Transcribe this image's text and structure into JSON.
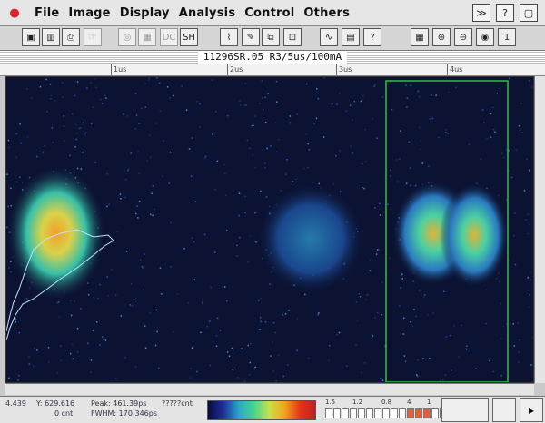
{
  "menu": {
    "apple_icon": "apple-icon",
    "items": [
      "File",
      "Image",
      "Display",
      "Analysis",
      "Control",
      "Others"
    ],
    "right_icons": [
      "fast-forward-icon",
      "help-icon",
      "window-icon"
    ]
  },
  "toolbar": {
    "buttons": [
      {
        "name": "open-icon",
        "label": "▣"
      },
      {
        "name": "save-icon",
        "label": "▥"
      },
      {
        "name": "print-icon",
        "label": "⎙"
      },
      {
        "name": "hand-icon",
        "label": "☞",
        "disabled": true
      },
      {
        "name": "disk-icon",
        "label": "◎",
        "disabled": true
      },
      {
        "name": "grid-icon",
        "label": "▦",
        "disabled": true
      },
      {
        "name": "dc-button",
        "label": "DC",
        "disabled": true
      },
      {
        "name": "sh-button",
        "label": "SH"
      },
      {
        "name": "profile-icon",
        "label": "⌇"
      },
      {
        "name": "pencil-icon",
        "label": "✎"
      },
      {
        "name": "camera-icon",
        "label": "⧉"
      },
      {
        "name": "crop-icon",
        "label": "⊡"
      },
      {
        "name": "wave-icon",
        "label": "∿"
      },
      {
        "name": "stack-icon",
        "label": "▤"
      },
      {
        "name": "help-button",
        "label": "?"
      },
      {
        "name": "calculator-icon",
        "label": "▦"
      },
      {
        "name": "zoom-in-icon",
        "label": "⊕"
      },
      {
        "name": "zoom-out-icon",
        "label": "⊖"
      },
      {
        "name": "color-wheel-icon",
        "label": "◉"
      },
      {
        "name": "scale-icon",
        "label": "1"
      }
    ]
  },
  "window": {
    "title": "11296SR.05 R3/5us/100mA"
  },
  "ruler": {
    "ticks": [
      "1us",
      "2us",
      "3us",
      "4us"
    ]
  },
  "status": {
    "x": "4.439",
    "y": "Y: 629.616",
    "count": "0 cnt",
    "peak": "Peak: 461.39ps",
    "fwhm": "FWHM: 170.346ps",
    "unknown": "?????cnt",
    "scale_labels": [
      "1.5",
      "1.2",
      "0.8",
      "4",
      "1"
    ]
  },
  "colors": {
    "background": "#0b1232",
    "roi": "#2fbf3f"
  }
}
